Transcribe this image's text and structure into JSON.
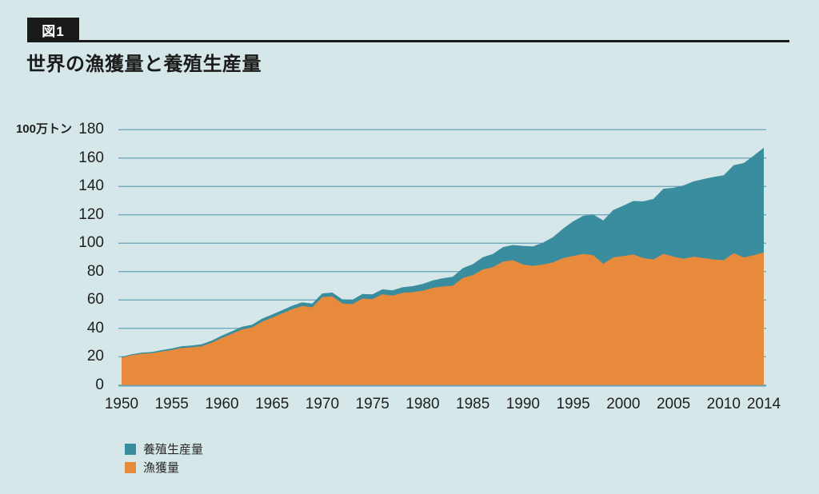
{
  "figure": {
    "tag": "図1",
    "title": "世界の漁獲量と養殖生産量"
  },
  "colors": {
    "background": "#d5e7e8",
    "catch_orange": "#e78a3c",
    "aquaculture_teal": "#3a8d9e",
    "gridline": "#63a2b8",
    "badge_black": "#1a1a1a",
    "text": "#1f1f1f"
  },
  "chart_data": {
    "type": "area",
    "stacked": true,
    "title": "世界の漁獲量と養殖生産量",
    "unit_label": "100万トン",
    "xlabel": "",
    "ylabel": "100万トン",
    "ylim": [
      0,
      180
    ],
    "grid": true,
    "legend_position": "bottom-left",
    "yticks": [
      0,
      20,
      40,
      60,
      80,
      100,
      120,
      140,
      160,
      180
    ],
    "xticks": [
      1950,
      1955,
      1960,
      1965,
      1970,
      1975,
      1980,
      1985,
      1990,
      1995,
      2000,
      2005,
      2010,
      2014
    ],
    "x": [
      1950,
      1951,
      1952,
      1953,
      1954,
      1955,
      1956,
      1957,
      1958,
      1959,
      1960,
      1961,
      1962,
      1963,
      1964,
      1965,
      1966,
      1967,
      1968,
      1969,
      1970,
      1971,
      1972,
      1973,
      1974,
      1975,
      1976,
      1977,
      1978,
      1979,
      1980,
      1981,
      1982,
      1983,
      1984,
      1985,
      1986,
      1987,
      1988,
      1989,
      1990,
      1991,
      1992,
      1993,
      1994,
      1995,
      1996,
      1997,
      1998,
      1999,
      2000,
      2001,
      2002,
      2003,
      2004,
      2005,
      2006,
      2007,
      2008,
      2009,
      2010,
      2011,
      2012,
      2013,
      2014
    ],
    "series": [
      {
        "name": "漁獲量",
        "color": "#e78a3c",
        "values": [
          19.3,
          21.0,
          22.1,
          22.4,
          23.6,
          24.7,
          26.2,
          26.6,
          27.4,
          29.9,
          33.2,
          36.1,
          39.2,
          40.5,
          44.7,
          47.5,
          50.5,
          53.5,
          55.8,
          54.8,
          62.0,
          62.5,
          57.5,
          57.0,
          61.0,
          60.5,
          64.0,
          63.0,
          65.0,
          65.5,
          66.5,
          68.5,
          69.5,
          70.0,
          75.5,
          77.5,
          81.5,
          83.0,
          87.0,
          88.0,
          85.0,
          84.0,
          85.0,
          86.5,
          89.5,
          91.0,
          92.5,
          91.5,
          85.5,
          90.0,
          91.0,
          92.0,
          89.5,
          88.5,
          92.5,
          90.5,
          89.0,
          90.5,
          89.5,
          88.5,
          88.0,
          93.0,
          90.0,
          91.5,
          93.5
        ]
      },
      {
        "name": "養殖生産量",
        "color": "#3a8d9e",
        "values": [
          0.6,
          0.7,
          0.8,
          0.9,
          1.0,
          1.1,
          1.2,
          1.3,
          1.4,
          1.5,
          1.7,
          1.8,
          1.9,
          2.0,
          2.1,
          2.2,
          2.3,
          2.4,
          2.5,
          2.6,
          2.6,
          2.7,
          2.9,
          3.1,
          3.2,
          3.4,
          3.5,
          3.7,
          3.9,
          4.2,
          4.7,
          5.2,
          5.8,
          6.3,
          6.9,
          7.7,
          8.6,
          9.4,
          10.2,
          10.7,
          13.1,
          13.7,
          15.4,
          17.8,
          20.8,
          24.4,
          26.8,
          28.7,
          30.6,
          33.4,
          35.5,
          37.8,
          40.0,
          42.7,
          45.9,
          48.6,
          51.7,
          53.1,
          55.7,
          58.2,
          59.9,
          62.0,
          66.5,
          70.3,
          73.8
        ]
      }
    ]
  }
}
